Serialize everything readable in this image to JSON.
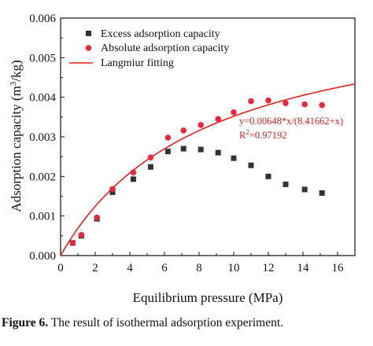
{
  "chart_data": {
    "type": "scatter",
    "xlabel": "Equilibrium pressure (MPa)",
    "ylabel_main": "Adsorption capacity (m",
    "ylabel_sup": "3",
    "ylabel_tail": "/kg)",
    "xlim": [
      0,
      17
    ],
    "ylim": [
      0,
      0.006
    ],
    "x_ticks": [
      "0",
      "2",
      "4",
      "6",
      "8",
      "10",
      "12",
      "14",
      "16"
    ],
    "y_ticks": [
      "0.000",
      "0.001",
      "0.002",
      "0.003",
      "0.004",
      "0.005",
      "0.006"
    ],
    "legend_position": "top-right",
    "series": [
      {
        "name": "Excess adsorption capacity",
        "marker": "square",
        "color": "#333333",
        "x": [
          0.7,
          1.2,
          2.1,
          3.0,
          4.2,
          5.2,
          6.2,
          7.1,
          8.1,
          9.1,
          10.0,
          11.0,
          12.0,
          13.0,
          14.1,
          15.1
        ],
        "y": [
          0.00032,
          0.0005,
          0.00093,
          0.0016,
          0.00193,
          0.00224,
          0.00263,
          0.0027,
          0.00268,
          0.0026,
          0.00246,
          0.00228,
          0.002,
          0.0018,
          0.00167,
          0.00158
        ]
      },
      {
        "name": "Absolute adsorption capacity",
        "marker": "circle",
        "color": "#e8283c",
        "x": [
          0.7,
          1.2,
          2.1,
          3.0,
          4.2,
          5.2,
          6.2,
          7.1,
          8.1,
          9.1,
          10.0,
          11.0,
          12.0,
          13.0,
          14.1,
          15.1
        ],
        "y": [
          0.00032,
          0.00052,
          0.00096,
          0.00168,
          0.0021,
          0.00248,
          0.00298,
          0.00316,
          0.0033,
          0.00345,
          0.00362,
          0.0039,
          0.00392,
          0.00385,
          0.00382,
          0.0038
        ]
      },
      {
        "name": "Langmiur fitting",
        "type": "line",
        "color": "#e02020",
        "equation": {
          "a": 0.00648,
          "b": 8.41662
        }
      }
    ],
    "annotations": {
      "equation": "y=0.00648*x/(8.41662+x)",
      "r2_prefix": "R",
      "r2_sup": "2",
      "r2_value": "=0.97192"
    }
  },
  "caption": {
    "label": "Figure 6.",
    "text": " The result of isothermal adsorption experiment."
  }
}
